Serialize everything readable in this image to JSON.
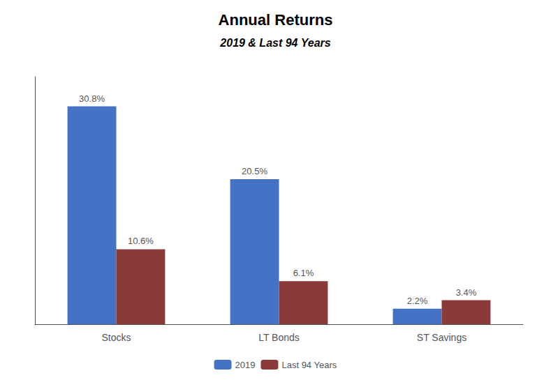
{
  "chart_data": {
    "type": "bar",
    "title": "Annual Returns",
    "subtitle": "2019 & Last 94 Years",
    "categories": [
      "Stocks",
      "LT Bonds",
      "ST Savings"
    ],
    "series": [
      {
        "name": "2019",
        "color": "#4472C4",
        "values": [
          30.8,
          20.5,
          2.2
        ],
        "value_labels": [
          "30.8%",
          "20.5%",
          "2.2%"
        ]
      },
      {
        "name": "Last 94 Years",
        "color": "#8B3A3A",
        "values": [
          10.6,
          6.1,
          3.4
        ],
        "value_labels": [
          "10.6%",
          "6.1%",
          "3.4%"
        ]
      }
    ],
    "ylim": [
      0,
      35
    ],
    "yticks": [],
    "grid": false,
    "legend": "bottom",
    "data_labels": true,
    "tick_labels": "x"
  }
}
